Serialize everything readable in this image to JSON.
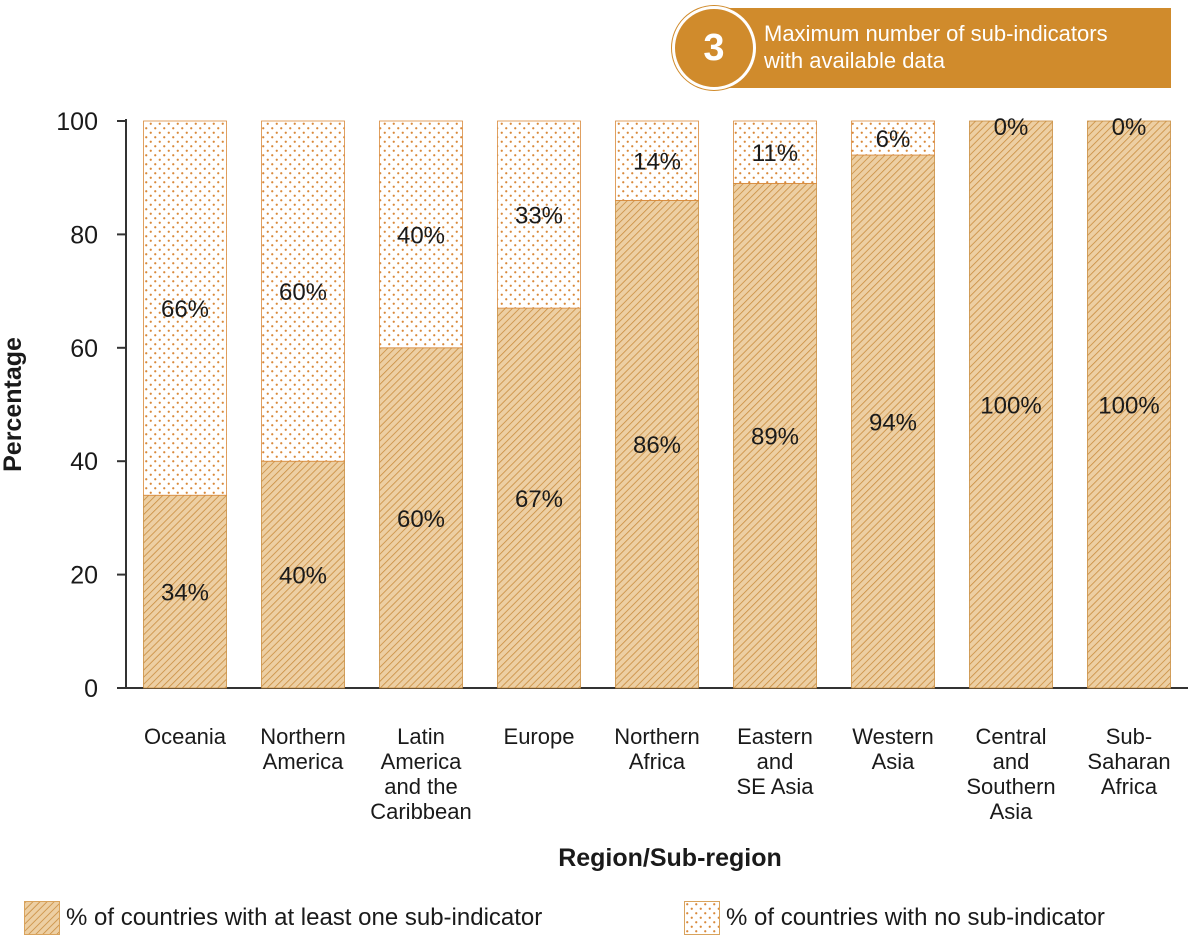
{
  "badge": {
    "number": "3",
    "line1": "Maximum number of sub-indicators",
    "line2": "with available data"
  },
  "colors": {
    "accent": "#d08b2c",
    "hatch_fill": "#edcfa3",
    "hatch_line": "#c98c3e",
    "dots_fill": "#ffffff",
    "dots_dot": "#d9893a"
  },
  "legend": {
    "with_label": "% of countries with at least one sub-indicator",
    "without_label": "% of countries with no sub-indicator"
  },
  "chart_data": {
    "type": "bar",
    "stacked": true,
    "xlabel": "Region/Sub-region",
    "ylabel": "Percentage",
    "ylim": [
      0,
      100
    ],
    "yticks": [
      0,
      20,
      40,
      60,
      80,
      100
    ],
    "categories": [
      [
        "Oceania"
      ],
      [
        "Northern",
        "America"
      ],
      [
        "Latin",
        "America",
        "and the",
        "Caribbean"
      ],
      [
        "Europe"
      ],
      [
        "Northern",
        "Africa"
      ],
      [
        "Eastern",
        "and",
        "SE Asia"
      ],
      [
        "Western",
        "Asia"
      ],
      [
        "Central",
        "and",
        "Southern",
        "Asia"
      ],
      [
        "Sub-",
        "Saharan",
        "Africa"
      ]
    ],
    "series": [
      {
        "name": "% of countries with at least one sub-indicator",
        "values": [
          34,
          40,
          60,
          67,
          86,
          89,
          94,
          100,
          100
        ],
        "labels": [
          "34%",
          "40%",
          "60%",
          "67%",
          "86%",
          "89%",
          "94%",
          "100%",
          "100%"
        ]
      },
      {
        "name": "% of countries with no sub-indicator",
        "values": [
          66,
          60,
          40,
          33,
          14,
          11,
          6,
          0,
          0
        ],
        "labels": [
          "66%",
          "60%",
          "40%",
          "33%",
          "14%",
          "11%",
          "6%",
          "0%",
          "0%"
        ]
      }
    ],
    "legend_position": "bottom",
    "grid": false
  }
}
